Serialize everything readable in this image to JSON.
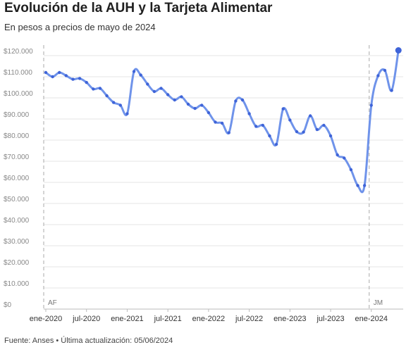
{
  "title": "Evolución de la AUH y la Tarjeta Alimentar",
  "subtitle": "En pesos a precios de mayo de 2024",
  "footer": "Fuente: Anses • Última actualización: 05/06/2024",
  "chart_data": {
    "type": "line",
    "ylim": [
      0,
      120000
    ],
    "yticks": [
      0,
      10000,
      20000,
      30000,
      40000,
      50000,
      60000,
      70000,
      80000,
      90000,
      100000,
      110000,
      120000
    ],
    "ytick_labels": [
      "$0",
      "$10.000",
      "$20.000",
      "$30.000",
      "$40.000",
      "$50.000",
      "$60.000",
      "$70.000",
      "$80.000",
      "$90.000",
      "$100.000",
      "$110.000",
      "$120.000"
    ],
    "xticks": [
      "ene-2020",
      "jul-2020",
      "ene-2021",
      "jul-2021",
      "ene-2022",
      "jul-2022",
      "ene-2023",
      "jul-2023",
      "ene-2024"
    ],
    "grid": true,
    "line_color": "#6f93ea",
    "marker_color": "#3f64d8",
    "markers": [
      {
        "label": "AF",
        "x_index": 0
      },
      {
        "label": "JM",
        "x_index": 48
      }
    ],
    "series": [
      {
        "values": [
          112000,
          110000,
          112000,
          110500,
          108800,
          109200,
          107300,
          104200,
          104500,
          101000,
          97800,
          96500,
          92500,
          112500,
          110800,
          106500,
          103000,
          104500,
          101500,
          99000,
          100500,
          97000,
          95000,
          96500,
          93000,
          88500,
          88000,
          83500,
          98500,
          99000,
          92500,
          86500,
          87000,
          82000,
          78000,
          94800,
          89500,
          84000,
          83800,
          91500,
          85000,
          87000,
          82000,
          73000,
          71500,
          66000,
          58500,
          58500,
          96500,
          110500,
          113000,
          103500,
          122500
        ]
      }
    ]
  }
}
